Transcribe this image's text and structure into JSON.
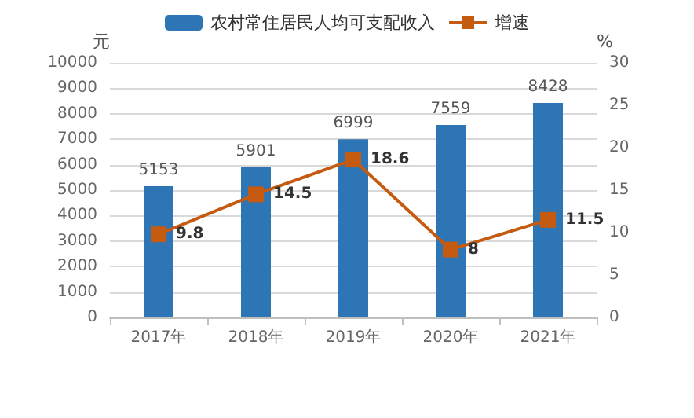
{
  "chart_data": {
    "type": "bar",
    "categories": [
      "2017年",
      "2018年",
      "2019年",
      "2020年",
      "2021年"
    ],
    "ylabel": "元",
    "y2label": "%",
    "series": [
      {
        "name": "农村常住居民人均可支配收入",
        "color": "#2e75b6",
        "values": [
          5153,
          5901,
          6999,
          7559,
          8428
        ]
      },
      {
        "name": "增速",
        "type": "line",
        "axis": "y2",
        "color": "#c55a11",
        "values": [
          9.8,
          14.5,
          18.6,
          8,
          11.5
        ]
      }
    ],
    "ylim": [
      0,
      10000
    ],
    "yticks": [
      0,
      1000,
      2000,
      3000,
      4000,
      5000,
      6000,
      7000,
      8000,
      9000,
      10000
    ],
    "y2lim": [
      0,
      30
    ],
    "y2ticks": [
      0,
      5,
      10,
      15,
      20,
      25,
      30
    ],
    "grid": "y",
    "legend": "top",
    "marker": "square",
    "data_labels": true
  }
}
